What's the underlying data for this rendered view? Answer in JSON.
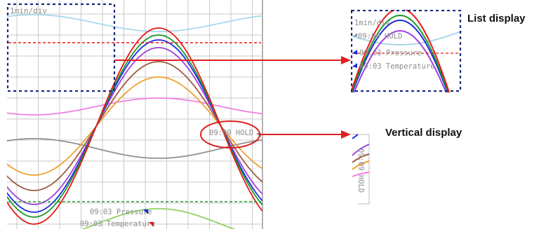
{
  "main_panel": {
    "scale_label": "1min/div",
    "hold_label": "09:09 HOLD",
    "marker_pressure": "09:03 Pressure",
    "marker_temperature": "09:03 Temperature"
  },
  "list_display": {
    "caption": "List display",
    "scale_label": "1min/div",
    "hold_label": "09:09 HOLD",
    "pressure_label": "09:03 Pressure",
    "temperature_label": "09:03 Temperature"
  },
  "vertical_display": {
    "caption": "Vertical display",
    "hold_label": "09:09 HOLD"
  },
  "colors": {
    "grid": "#c8c8c8",
    "frame": "#9a9a9a",
    "highlight_box": "#1a2a80",
    "arrow": "#e02020",
    "trace_light_blue": "#a8d8ea",
    "trace_red": "#e81818",
    "trace_green": "#1a9a2a",
    "trace_blue": "#1a2ae0",
    "trace_purple": "#a040e0",
    "trace_brown": "#a05a40",
    "trace_orange": "#f0a030",
    "trace_pink": "#f080e0",
    "trace_gray": "#909090",
    "trace_light_green": "#90d060",
    "ref_red_dashed": "#e81818",
    "ref_green_dashed": "#1a9a2a"
  }
}
